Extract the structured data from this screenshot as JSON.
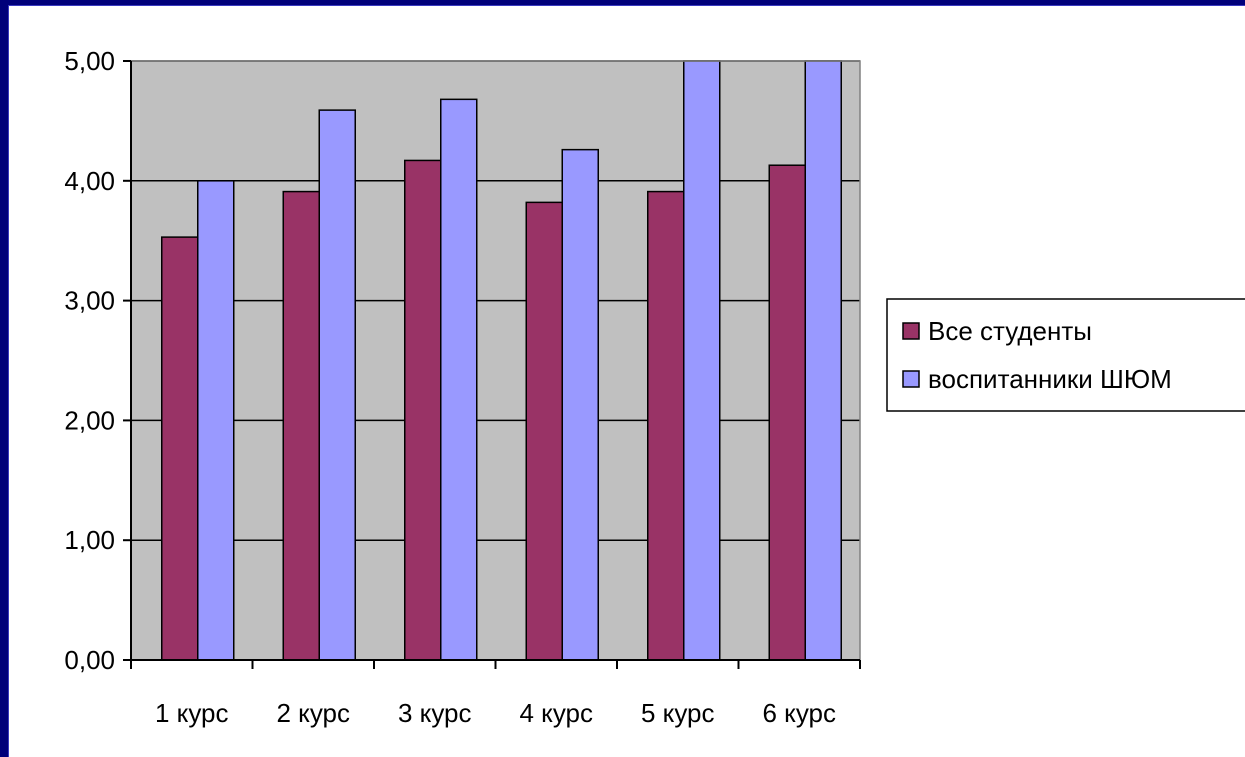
{
  "chart_data": {
    "type": "bar",
    "categories": [
      "1 курс",
      "2 курс",
      "3 курс",
      "4 курс",
      "5 курс",
      "6 курс"
    ],
    "series": [
      {
        "name": "Все студенты",
        "values": [
          3.53,
          3.91,
          4.17,
          3.82,
          3.91,
          4.13
        ],
        "color": "#993366"
      },
      {
        "name": "воспитанники ШЮМ",
        "values": [
          4.0,
          4.59,
          4.68,
          4.26,
          5.0,
          5.0
        ],
        "color": "#9999ff"
      }
    ],
    "y_ticks": [
      "0,00",
      "1,00",
      "2,00",
      "3,00",
      "4,00",
      "5,00"
    ],
    "ylim": [
      0,
      5
    ],
    "grid": true,
    "plot_background": "#c0c0c0",
    "legend_position": "right"
  }
}
